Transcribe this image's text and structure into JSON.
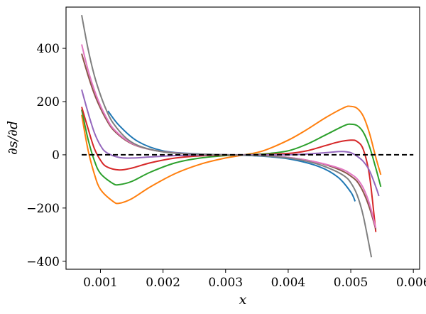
{
  "chart_data": {
    "type": "line",
    "title": "",
    "xlabel": "x",
    "ylabel": "∂s/∂d",
    "xlim": [
      0.00045,
      0.0061
    ],
    "ylim": [
      -430,
      555
    ],
    "xticks": [
      0.001,
      0.002,
      0.003,
      0.004,
      0.005,
      0.006
    ],
    "xtick_labels": [
      "0.001",
      "0.002",
      "0.003",
      "0.004",
      "0.005",
      "0.006"
    ],
    "yticks": [
      400,
      200,
      0,
      -200,
      -400
    ],
    "ytick_labels": [
      "400",
      "200",
      "0",
      "−200",
      "−400"
    ],
    "grid": false,
    "reference_line": {
      "y": 0,
      "x": [
        0.0007,
        0.006
      ],
      "style": "dashed",
      "color": "#000000"
    },
    "series": [
      {
        "color": "#1f77b4",
        "x": [
          0.00112,
          0.0013,
          0.0016,
          0.002,
          0.0025,
          0.003,
          0.0035,
          0.004,
          0.0045,
          0.0048,
          0.005,
          0.00507
        ],
        "y": [
          165,
          110,
          50,
          15,
          4,
          0,
          -4,
          -15,
          -45,
          -85,
          -140,
          -175
        ]
      },
      {
        "color": "#ff7f0e",
        "x": [
          0.0007,
          0.0008,
          0.0009,
          0.001,
          0.0012,
          0.0013,
          0.0015,
          0.0018,
          0.0022,
          0.0026,
          0.003,
          0.0033,
          0.0036,
          0.004,
          0.0043,
          0.0046,
          0.0049,
          0.005,
          0.0051,
          0.0052,
          0.0053,
          0.0054,
          0.00548
        ],
        "y": [
          150,
          20,
          -70,
          -130,
          -175,
          -182,
          -165,
          -120,
          -70,
          -35,
          -12,
          0,
          15,
          55,
          95,
          140,
          178,
          182,
          175,
          145,
          80,
          -10,
          -75
        ]
      },
      {
        "color": "#2ca02c",
        "x": [
          0.0007,
          0.0008,
          0.0009,
          0.001,
          0.0012,
          0.0013,
          0.0015,
          0.0018,
          0.0022,
          0.0026,
          0.003,
          0.0033,
          0.0036,
          0.004,
          0.0043,
          0.0046,
          0.0049,
          0.005,
          0.0051,
          0.0052,
          0.0053,
          0.0054,
          0.00548
        ],
        "y": [
          170,
          60,
          -20,
          -70,
          -108,
          -112,
          -100,
          -65,
          -30,
          -12,
          -3,
          0,
          3,
          15,
          40,
          75,
          110,
          115,
          110,
          85,
          30,
          -50,
          -120
        ]
      },
      {
        "color": "#d62728",
        "x": [
          0.0007,
          0.0008,
          0.0009,
          0.001,
          0.0011,
          0.0013,
          0.0015,
          0.0018,
          0.0022,
          0.0026,
          0.003,
          0.0035,
          0.004,
          0.0043,
          0.0046,
          0.0048,
          0.005,
          0.0051,
          0.0052,
          0.0053,
          0.0054
        ],
        "y": [
          180,
          100,
          25,
          -20,
          -45,
          -57,
          -50,
          -30,
          -12,
          -4,
          -1,
          0,
          5,
          15,
          35,
          48,
          55,
          50,
          20,
          -80,
          -290
        ]
      },
      {
        "color": "#9467bd",
        "x": [
          0.0007,
          0.0008,
          0.0009,
          0.001,
          0.0011,
          0.0013,
          0.0015,
          0.0018,
          0.0022,
          0.0026,
          0.003,
          0.0035,
          0.004,
          0.0043,
          0.0046,
          0.0048,
          0.0049,
          0.005,
          0.0051,
          0.0052,
          0.0053,
          0.0054,
          0.00545
        ],
        "y": [
          245,
          160,
          85,
          35,
          8,
          -10,
          -12,
          -8,
          -3,
          -1,
          0,
          0,
          0,
          3,
          8,
          12,
          12,
          8,
          -5,
          -25,
          -60,
          -120,
          -155
        ]
      },
      {
        "color": "#8c564b",
        "x": [
          0.0007,
          0.0008,
          0.0009,
          0.001,
          0.0011,
          0.0012,
          0.0014,
          0.0016,
          0.0019,
          0.0022,
          0.0026,
          0.003,
          0.0035,
          0.004,
          0.0044,
          0.0047,
          0.0049,
          0.005,
          0.0051,
          0.0052,
          0.0053,
          0.0054
        ],
        "y": [
          380,
          300,
          230,
          175,
          130,
          95,
          55,
          32,
          15,
          7,
          2,
          0,
          -2,
          -10,
          -25,
          -45,
          -65,
          -80,
          -100,
          -140,
          -200,
          -280
        ]
      },
      {
        "color": "#e377c2",
        "x": [
          0.0007,
          0.0008,
          0.0009,
          0.001,
          0.0011,
          0.0012,
          0.0014,
          0.0016,
          0.0019,
          0.0022,
          0.0026,
          0.003,
          0.0035,
          0.004,
          0.0044,
          0.0047,
          0.0049,
          0.005,
          0.0051,
          0.0052,
          0.0053,
          0.0054
        ],
        "y": [
          415,
          320,
          245,
          185,
          138,
          100,
          58,
          33,
          15,
          7,
          2,
          0,
          -2,
          -10,
          -25,
          -42,
          -58,
          -72,
          -90,
          -125,
          -185,
          -275
        ]
      },
      {
        "color": "#7f7f7f",
        "x": [
          0.0007,
          0.0008,
          0.0009,
          0.001,
          0.0011,
          0.0012,
          0.0014,
          0.0016,
          0.0019,
          0.0022,
          0.0026,
          0.003,
          0.0035,
          0.004,
          0.0044,
          0.0047,
          0.0049,
          0.005,
          0.0051,
          0.0052,
          0.00533
        ],
        "y": [
          525,
          400,
          300,
          225,
          165,
          120,
          65,
          35,
          15,
          6,
          2,
          0,
          -3,
          -12,
          -30,
          -55,
          -80,
          -105,
          -150,
          -230,
          -385
        ]
      }
    ]
  }
}
